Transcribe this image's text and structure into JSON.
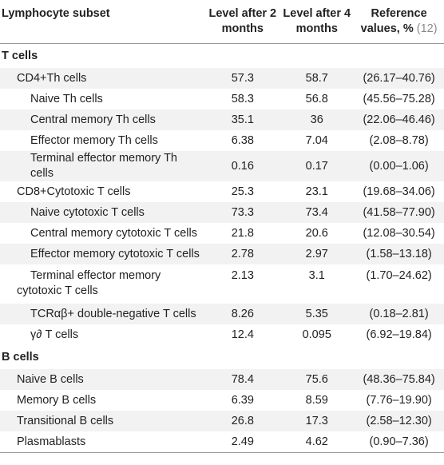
{
  "table": {
    "headers": {
      "subset": "Lymphocyte subset",
      "level2": "Level after 2 months",
      "level4": "Level after 4 months",
      "reference": "Reference values, %",
      "ref_citation": "(12)"
    },
    "rows": [
      {
        "label": "T cells"
      },
      {
        "label": "CD4+Th cells",
        "v2": "57.3",
        "v4": "58.7",
        "ref": "(26.17–40.76)"
      },
      {
        "label": "Naive Th cells",
        "v2": "58.3",
        "v4": "56.8",
        "ref": "(45.56–75.28)"
      },
      {
        "label": "Central memory Th cells",
        "v2": "35.1",
        "v4": "36",
        "ref": "(22.06–46.46)"
      },
      {
        "label": "Effector memory Th cells",
        "v2": "6.38",
        "v4": "7.04",
        "ref": "(2.08–8.78)"
      },
      {
        "label": "Terminal effector memory Th cells",
        "v2": "0.16",
        "v4": "0.17",
        "ref": "(0.00–1.06)"
      },
      {
        "label": "CD8+Cytotoxic T cells",
        "v2": "25.3",
        "v4": "23.1",
        "ref": "(19.68–34.06)"
      },
      {
        "label": "Naive cytotoxic T cells",
        "v2": "73.3",
        "v4": "73.4",
        "ref": "(41.58–77.90)"
      },
      {
        "label": "Central memory cytotoxic T cells",
        "v2": "21.8",
        "v4": "20.6",
        "ref": "(12.08–30.54)"
      },
      {
        "label": "Effector memory cytotoxic T cells",
        "v2": "2.78",
        "v4": "2.97",
        "ref": "(1.58–13.18)"
      },
      {
        "label": "Terminal effector memory cytotoxic T cells",
        "v2": "2.13",
        "v4": "3.1",
        "ref": "(1.70–24.62)"
      },
      {
        "label": "TCRαβ+ double-negative T cells",
        "v2": "8.26",
        "v4": "5.35",
        "ref": "(0.18–2.81)"
      },
      {
        "label": "γ∂ T cells",
        "v2": "12.4",
        "v4": "0.095",
        "ref": "(6.92–19.84)"
      },
      {
        "label": "B cells"
      },
      {
        "label": "Naive B cells",
        "v2": "78.4",
        "v4": "75.6",
        "ref": "(48.36–75.84)"
      },
      {
        "label": "Memory B cells",
        "v2": "6.39",
        "v4": "8.59",
        "ref": "(7.76–19.90)"
      },
      {
        "label": "Transitional B cells",
        "v2": "26.8",
        "v4": "17.3",
        "ref": "(2.58–12.30)"
      },
      {
        "label": "Plasmablasts",
        "v2": "2.49",
        "v4": "4.62",
        "ref": "(0.90–7.36)"
      }
    ]
  }
}
